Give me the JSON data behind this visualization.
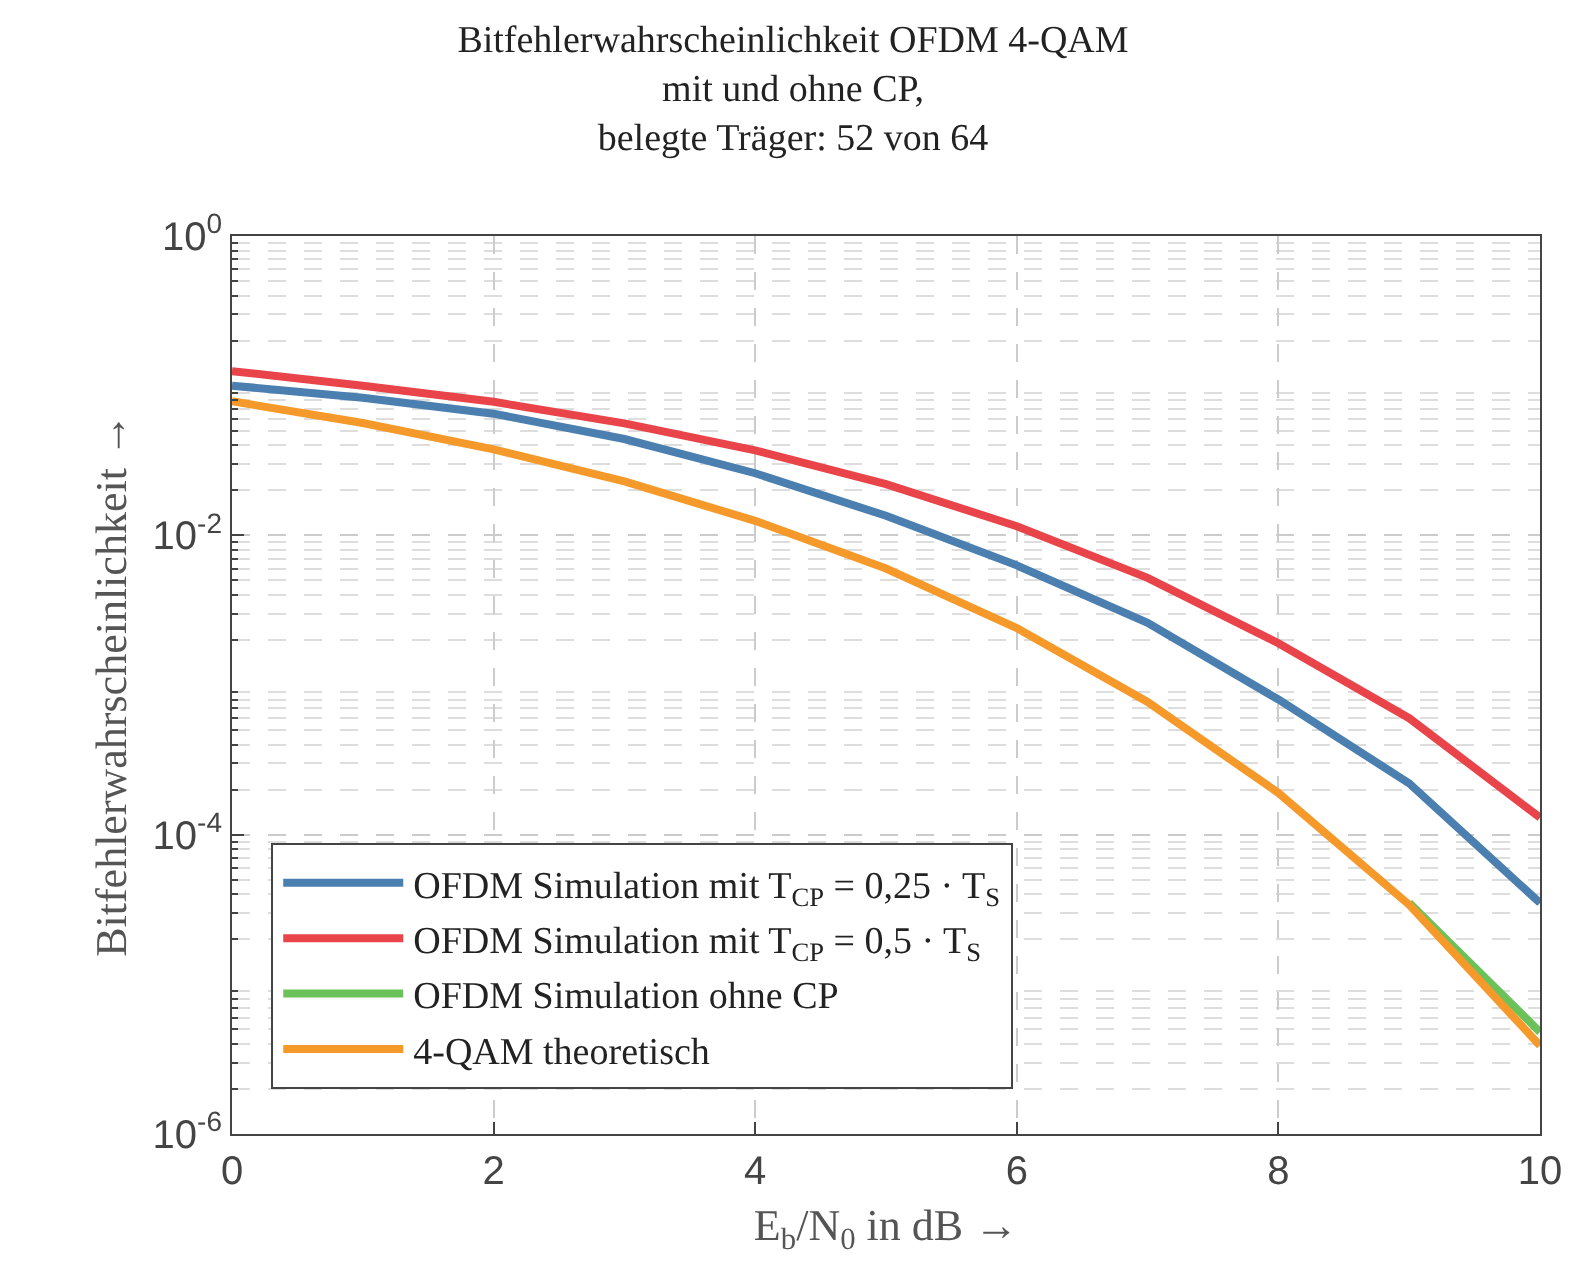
{
  "chart_data": {
    "type": "line",
    "title": "Bitfehlerwahrscheinlichkeit OFDM 4-QAM\nmit und ohne CP,\nbelegte Träger: 52 von 64",
    "xlabel": "E$_{b}$/N$_{0}$ in dB →",
    "ylabel": "Bitfehlerwahrscheinlichkeit →",
    "x": [
      0,
      1,
      2,
      3,
      4,
      5,
      6,
      7,
      8,
      9,
      10
    ],
    "series": [
      {
        "name": "OFDM Simulation mit T$_{CP}$ = 0,25 · T$_{S}$",
        "color": "#4a7fb0",
        "values": [
          0.1,
          0.083,
          0.065,
          0.044,
          0.026,
          0.0135,
          0.0063,
          0.0026,
          0.0008,
          0.00022,
          3.5e-05
        ]
      },
      {
        "name": "OFDM Simulation mit T$_{CP}$ = 0,5 · T$_{S}$",
        "color": "#e8444a",
        "values": [
          0.125,
          0.1,
          0.078,
          0.056,
          0.037,
          0.022,
          0.0115,
          0.0052,
          0.0019,
          0.0006,
          0.00013
        ]
      },
      {
        "name": "OFDM Simulation ohne CP",
        "color": "#6cc25a",
        "values": [
          null,
          null,
          null,
          null,
          null,
          null,
          null,
          null,
          null,
          3.5e-05,
          4.8e-06
        ]
      },
      {
        "name": "4-QAM theoretisch",
        "color": "#f59a2a",
        "values": [
          0.0786,
          0.0563,
          0.0375,
          0.0229,
          0.0125,
          0.006,
          0.0024,
          0.00077,
          0.00019,
          3.4e-05,
          3.9e-06
        ]
      }
    ],
    "log": "y",
    "xlim": [
      0,
      10
    ],
    "xticks": [
      0,
      2,
      4,
      6,
      8,
      10
    ],
    "ylim": [
      1e-06,
      1
    ],
    "yticks": [
      {
        "value": 1,
        "label": "10$^{0}$"
      },
      {
        "value": 0.01,
        "label": "10$^{-2}$"
      },
      {
        "value": 0.0001,
        "label": "10$^{-4}$"
      },
      {
        "value": 1e-06,
        "label": "10$^{-6}$"
      }
    ],
    "grid": true,
    "legend": "bottom left",
    "marker": "none",
    "line_style": "solid"
  }
}
